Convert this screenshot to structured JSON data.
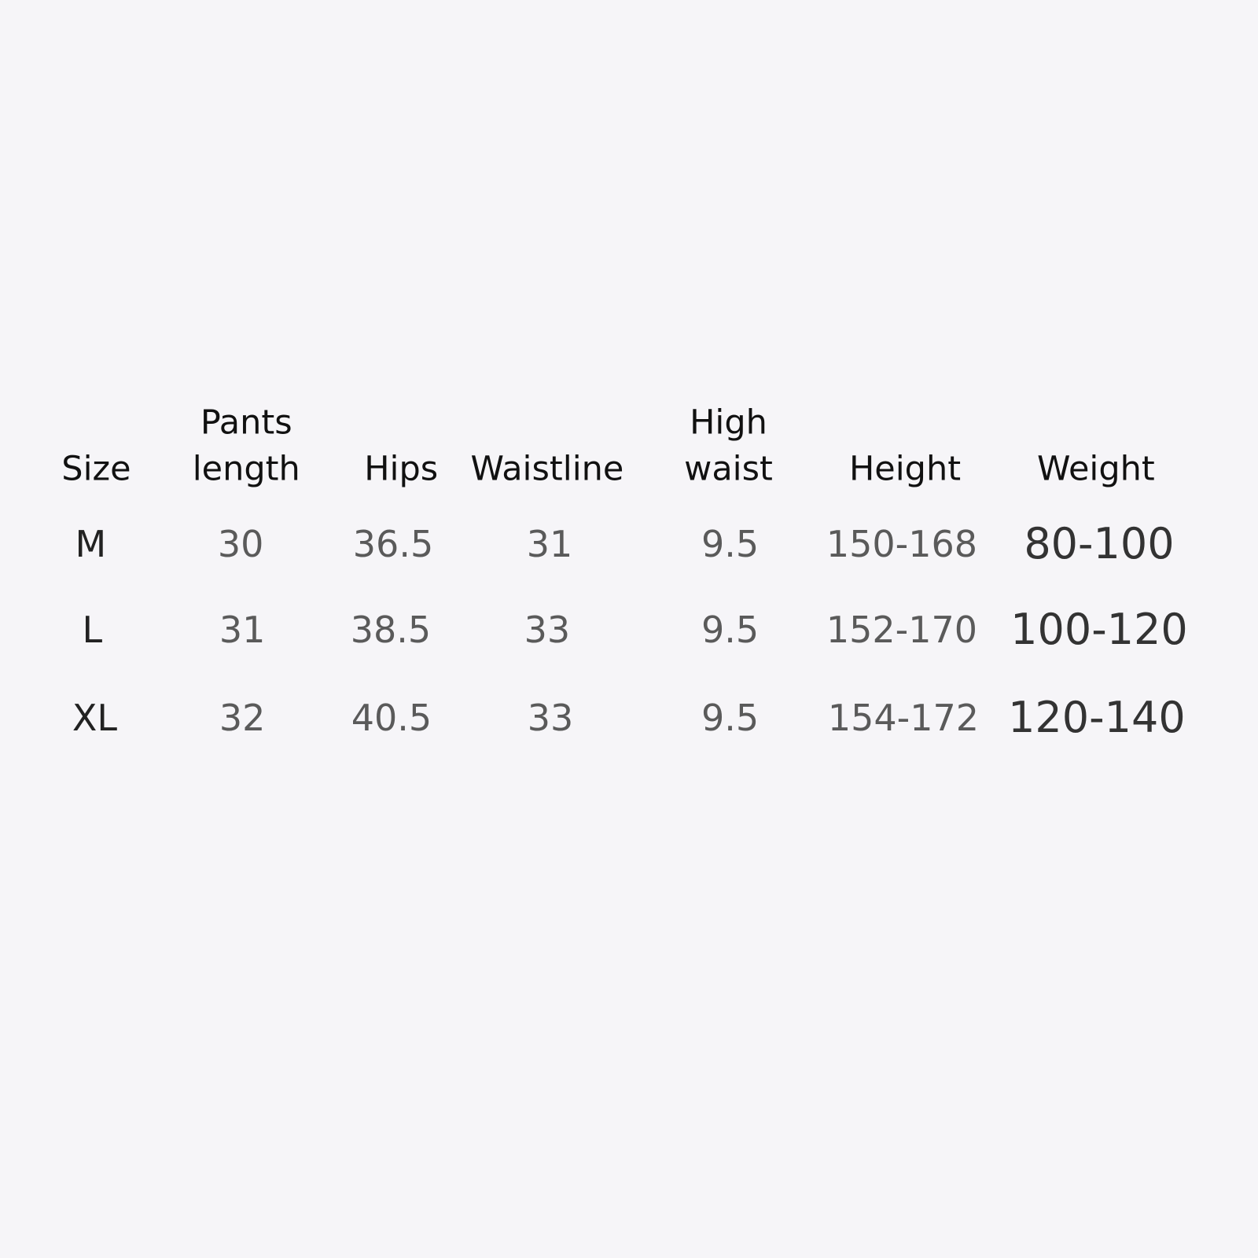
{
  "size_chart": {
    "headers": [
      {
        "line1": "",
        "line2": "Size"
      },
      {
        "line1": "Pants",
        "line2": "length"
      },
      {
        "line1": "",
        "line2": "Hips"
      },
      {
        "line1": "",
        "line2": "Waistline"
      },
      {
        "line1": "High",
        "line2": "waist"
      },
      {
        "line1": "",
        "line2": "Height"
      },
      {
        "line1": "",
        "line2": "Weight"
      }
    ],
    "rows": [
      [
        "M",
        "30",
        "36.5",
        "31",
        "9.5",
        "150-168",
        "80-100"
      ],
      [
        "L",
        "31",
        "38.5",
        "33",
        "9.5",
        "152-170",
        "100-120"
      ],
      [
        "XL",
        "32",
        "40.5",
        "33",
        "9.5",
        "154-172",
        "120-140"
      ]
    ]
  }
}
